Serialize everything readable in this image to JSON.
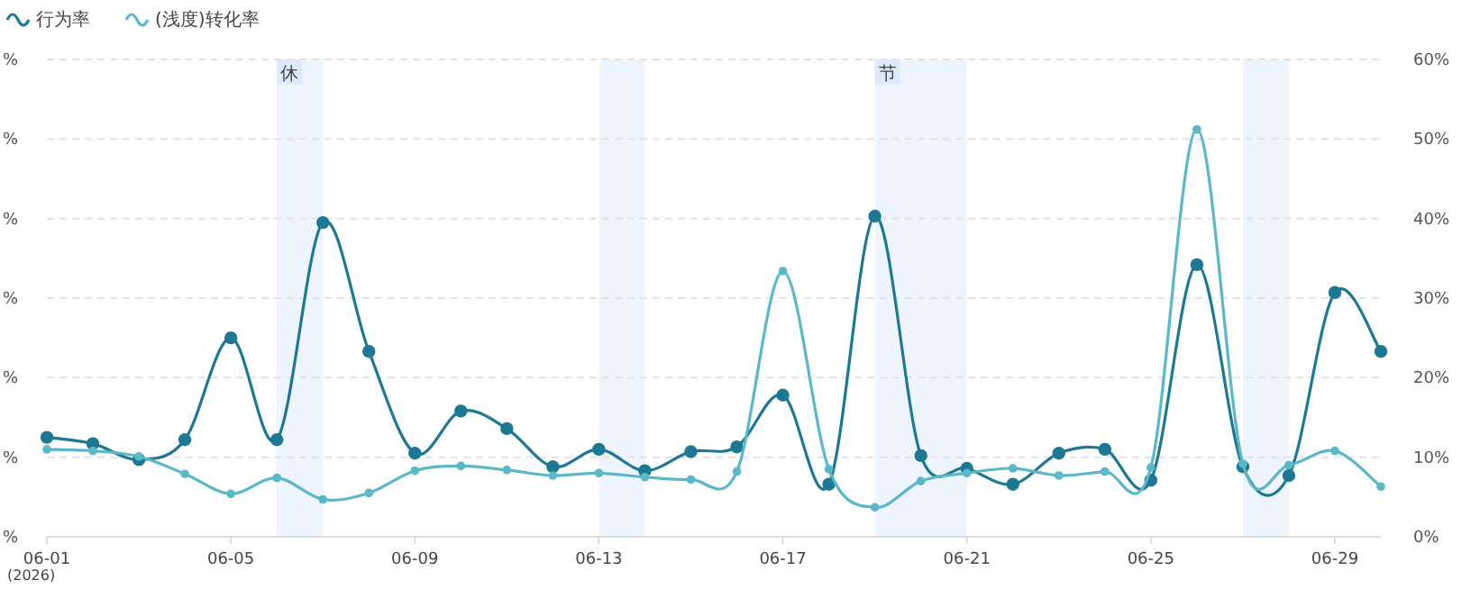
{
  "chart_data": {
    "type": "line",
    "x": [
      "2026-06-01",
      "2026-06-02",
      "2026-06-03",
      "2026-06-04",
      "2026-06-05",
      "2026-06-06",
      "2026-06-07",
      "2026-06-08",
      "2026-06-09",
      "2026-06-10",
      "2026-06-11",
      "2026-06-12",
      "2026-06-13",
      "2026-06-14",
      "2026-06-15",
      "2026-06-16",
      "2026-06-17",
      "2026-06-18",
      "2026-06-19",
      "2026-06-20",
      "2026-06-21",
      "2026-06-22",
      "2026-06-23",
      "2026-06-24",
      "2026-06-25",
      "2026-06-26",
      "2026-06-27",
      "2026-06-28",
      "2026-06-29",
      "2026-06-30"
    ],
    "series": [
      {
        "name": "行为率",
        "color": "#1c7893",
        "axis": "y2",
        "values": [
          12.5,
          11.7,
          9.7,
          12.2,
          25.0,
          12.2,
          39.5,
          23.3,
          10.5,
          15.8,
          13.6,
          8.8,
          11.0,
          8.3,
          10.7,
          11.3,
          17.8,
          6.6,
          40.3,
          10.2,
          8.6,
          6.6,
          10.5,
          11.0,
          7.1,
          34.2,
          8.8,
          7.7,
          30.7,
          23.3
        ]
      },
      {
        "name": "(浅度)转化率",
        "color": "#5ab8c9",
        "axis": "y2",
        "values": [
          11.0,
          10.8,
          10.1,
          7.9,
          5.4,
          7.4,
          4.7,
          5.5,
          8.3,
          8.9,
          8.4,
          7.7,
          8.0,
          7.5,
          7.2,
          8.2,
          33.4,
          8.5,
          3.7,
          7.0,
          8.0,
          8.6,
          7.7,
          8.2,
          8.7,
          51.2,
          9.2,
          9.0,
          10.8,
          6.3
        ]
      }
    ],
    "xlim": [
      "2026-06-01",
      "2026-06-30"
    ],
    "xticks": [
      {
        "value": "2026-06-01",
        "label": "06-01"
      },
      {
        "value": "2026-06-05",
        "label": "06-05"
      },
      {
        "value": "2026-06-09",
        "label": "06-09"
      },
      {
        "value": "2026-06-13",
        "label": "06-13"
      },
      {
        "value": "2026-06-17",
        "label": "06-17"
      },
      {
        "value": "2026-06-21",
        "label": "06-21"
      },
      {
        "value": "2026-06-25",
        "label": "06-25"
      },
      {
        "value": "2026-06-29",
        "label": "06-29"
      }
    ],
    "y2lim": [
      0,
      60
    ],
    "y2ticks": [
      {
        "value": 0,
        "label": "0%"
      },
      {
        "value": 10,
        "label": "10%"
      },
      {
        "value": 20,
        "label": "20%"
      },
      {
        "value": 30,
        "label": "30%"
      },
      {
        "value": 40,
        "label": "40%"
      },
      {
        "value": 50,
        "label": "50%"
      },
      {
        "value": 60,
        "label": "60%"
      }
    ],
    "bands": [
      {
        "axis": "x",
        "from": "2026-06-06",
        "to": "2026-06-07",
        "label": "休",
        "color": "#eef5fe"
      },
      {
        "axis": "x",
        "from": "2026-06-13",
        "to": "2026-06-14",
        "label": null,
        "color": "#eef5fe"
      },
      {
        "axis": "x",
        "from": "2026-06-19",
        "to": "2026-06-21",
        "label": "节",
        "color": "#eef5fe"
      },
      {
        "axis": "x",
        "from": "2026-06-27",
        "to": "2026-06-28",
        "label": null,
        "color": "#eef5fe"
      }
    ],
    "annotations": [
      "(2026)",
      "%",
      "%",
      "%",
      "%",
      "%",
      "%",
      "%"
    ],
    "grid": "y",
    "legend": "top left",
    "marker": "circle",
    "line_style": "solid"
  }
}
